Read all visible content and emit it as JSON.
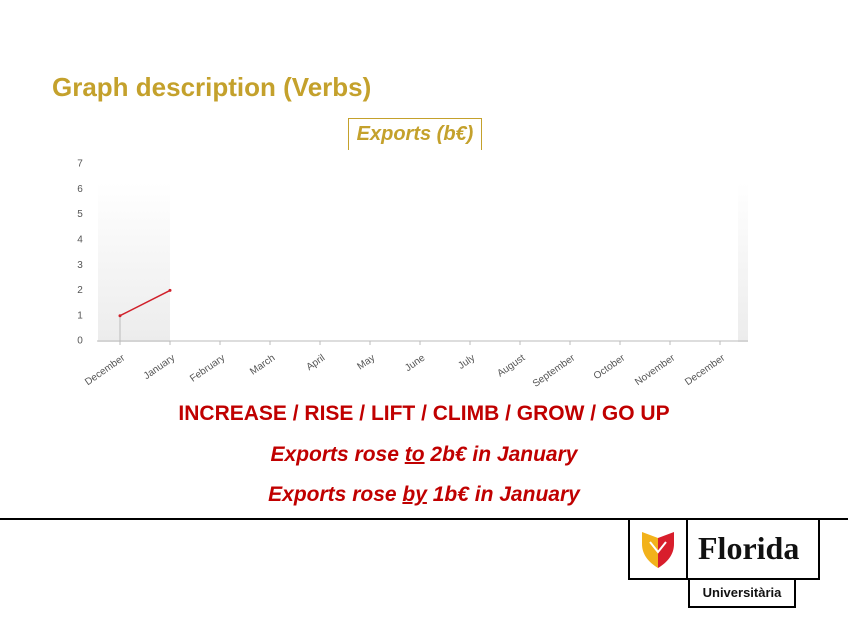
{
  "slide_title": "Graph description (Verbs)",
  "chart_data": {
    "type": "line",
    "title": "Exports (b€)",
    "categories": [
      "December",
      "January",
      "February",
      "March",
      "April",
      "May",
      "June",
      "July",
      "August",
      "September",
      "October",
      "November",
      "December"
    ],
    "series": [
      {
        "name": "Exports",
        "color": "#d0202a",
        "values": [
          1,
          2,
          null,
          null,
          null,
          null,
          null,
          null,
          null,
          null,
          null,
          null,
          null
        ]
      }
    ],
    "ylim": [
      0,
      7
    ],
    "yticks": [
      0,
      1,
      2,
      3,
      4,
      5,
      6,
      7
    ]
  },
  "verbs": "INCREASE / RISE / LIFT / CLIMB / GROW / GO UP",
  "sentences": [
    [
      "Exports rose ",
      "to",
      " 2b€ in January"
    ],
    [
      "Exports rose ",
      "by",
      " 1b€ in January"
    ]
  ],
  "logo": {
    "name": "Florida",
    "sub": "Universitària"
  }
}
